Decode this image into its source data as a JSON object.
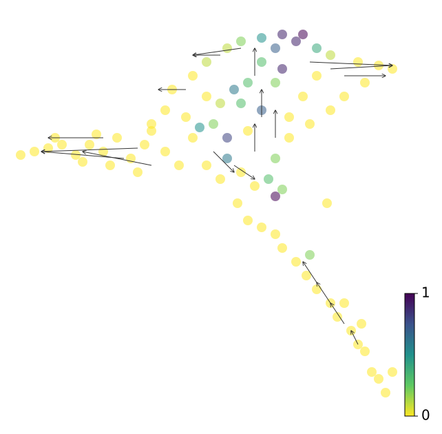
{
  "chart_data": {
    "type": "scatter",
    "colormap": "viridis_r",
    "xlim": [
      0,
      64.2
    ],
    "ylim": [
      63,
      0
    ],
    "x": [
      3,
      5,
      7,
      9,
      11,
      13,
      15,
      17,
      19,
      21,
      8,
      12,
      16,
      20,
      22,
      24,
      26,
      14,
      25,
      28,
      30,
      33,
      35,
      38,
      41,
      44,
      43,
      40,
      46,
      48,
      52,
      55,
      57,
      53,
      50,
      48,
      45,
      42,
      40,
      39,
      40,
      37,
      35,
      32,
      30,
      28,
      27,
      24,
      22,
      31,
      33,
      35,
      38,
      36,
      40,
      41,
      34,
      32,
      44,
      46,
      38,
      30,
      29,
      33,
      36,
      42,
      41,
      34.5,
      36,
      38,
      40,
      41,
      43,
      44.5,
      45,
      46,
      48,
      49,
      51,
      52,
      53,
      47.5,
      54,
      55,
      57,
      56,
      52.5,
      50
    ],
    "y": [
      22.5,
      22,
      21.5,
      21,
      22.5,
      21,
      22,
      20,
      23,
      21,
      20,
      23.5,
      24,
      25,
      19,
      22,
      24,
      19.5,
      13,
      11,
      9,
      7,
      6,
      5.5,
      5,
      5,
      6,
      7,
      7,
      8,
      9,
      9.5,
      10,
      12,
      14,
      16,
      18,
      20,
      23,
      26,
      28.5,
      27,
      25,
      26,
      24,
      20,
      17,
      16,
      18,
      18,
      20,
      15,
      16,
      12,
      12,
      10,
      13,
      15,
      14,
      11,
      9,
      14,
      18.5,
      23,
      19,
      17,
      27.5,
      29.5,
      32,
      33,
      34,
      36,
      38,
      40,
      37,
      42,
      44,
      46,
      48,
      50,
      51,
      29.5,
      54,
      55,
      54,
      57,
      47,
      44
    ],
    "values": [
      0,
      0,
      0,
      0,
      0,
      0,
      0,
      0,
      0,
      0,
      0,
      0,
      0,
      0,
      0,
      0,
      0,
      0,
      0,
      0,
      0.1,
      0.1,
      0.2,
      0.5,
      0.9,
      1,
      0.9,
      0.7,
      0.4,
      0.1,
      0,
      0,
      0,
      0,
      0,
      0,
      0,
      0,
      0.2,
      0.3,
      1,
      0,
      0,
      0,
      0,
      0,
      0,
      0,
      0,
      0.2,
      0.8,
      0.3,
      0.7,
      0.3,
      0.2,
      0.9,
      0.6,
      0.1,
      0,
      0,
      0.3,
      0,
      0.5,
      0.6,
      0,
      0,
      0.2,
      0,
      0,
      0,
      0,
      0,
      0,
      0,
      0.2,
      0,
      0,
      0,
      0,
      0,
      0,
      0,
      0,
      0,
      0,
      0,
      0,
      0
    ],
    "velocity": {
      "x": [
        20,
        18,
        15,
        22,
        35,
        32,
        27,
        45,
        48,
        50,
        37,
        38,
        37,
        40,
        31,
        34,
        50,
        48,
        46,
        52
      ],
      "y": [
        21.5,
        23,
        20,
        24,
        7,
        8,
        13,
        9,
        10,
        11,
        22,
        17,
        11,
        20,
        22,
        24,
        47,
        44,
        41,
        50
      ],
      "dx": [
        -14,
        -12,
        -8,
        -10,
        -7,
        -4,
        -4,
        12,
        9,
        6,
        0,
        0,
        0,
        0,
        3,
        3,
        -2,
        -2,
        -2,
        -1
      ],
      "dy": [
        0.5,
        -1,
        0,
        -2,
        1,
        0,
        0,
        0.5,
        -0.5,
        0,
        -4,
        -4,
        -4,
        -4,
        3,
        2,
        -3,
        -3,
        -3,
        -2
      ]
    },
    "colorbar": {
      "lim": [
        0,
        1
      ],
      "ticks": [
        0,
        1
      ]
    }
  }
}
